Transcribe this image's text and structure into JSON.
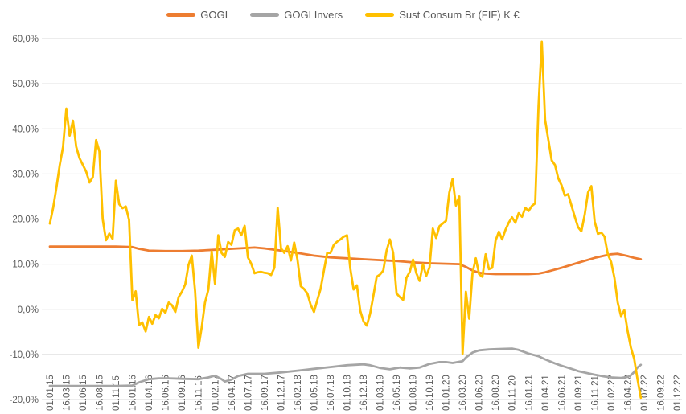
{
  "colors": {
    "background": "#FFFFFF",
    "gridline": "#D9D9D9",
    "axis_text": "#595959",
    "gogi": "#ED7D31",
    "gogi_invers": "#A5A5A5",
    "sust_consum": "#FFC000"
  },
  "chart_data": {
    "type": "line",
    "title": "",
    "legend_position": "top",
    "grid": "horizontal",
    "x_axis": {
      "tick_labels": [
        "01.01.15",
        "16.03.15",
        "01.06.15",
        "16.08.15",
        "01.11.15",
        "16.01.16",
        "01.04.16",
        "16.06.16",
        "01.09.16",
        "16.11.16",
        "01.02.17",
        "16.04.17",
        "01.07.17",
        "16.09.17",
        "01.12.17",
        "16.02.18",
        "01.05.18",
        "16.07.18",
        "01.10.18",
        "16.12.18",
        "01.03.19",
        "16.05.19",
        "01.08.19",
        "16.10.19",
        "01.01.20",
        "16.03.20",
        "01.06.20",
        "16.08.20",
        "01.11.20",
        "16.01.21",
        "01.04.21",
        "16.06.21",
        "01.09.21",
        "16.11.21",
        "01.02.22",
        "16.04.22",
        "01.07.22",
        "16.09.22",
        "01.12.22"
      ],
      "points_per_tick": 5,
      "total_points": 190,
      "note": "semi-monthly data points; data series end near 01.07.22"
    },
    "y_axis": {
      "min": -20,
      "max": 60,
      "step": 10,
      "tick_labels": [
        "60,0%",
        "50,0%",
        "40,0%",
        "30,0%",
        "20,0%",
        "10,0%",
        "0,0%",
        "-10,0%",
        "-20,0%"
      ],
      "unit": "percent"
    },
    "series": [
      {
        "name": "GOGI",
        "color": "#ED7D31",
        "points": [
          [
            0,
            13.9
          ],
          [
            5,
            13.9
          ],
          [
            10,
            13.9
          ],
          [
            15,
            13.9
          ],
          [
            20,
            13.9
          ],
          [
            25,
            13.8
          ],
          [
            27,
            13.4
          ],
          [
            30,
            13.0
          ],
          [
            35,
            12.9
          ],
          [
            40,
            12.9
          ],
          [
            45,
            13.0
          ],
          [
            50,
            13.2
          ],
          [
            55,
            13.4
          ],
          [
            60,
            13.6
          ],
          [
            62,
            13.7
          ],
          [
            65,
            13.5
          ],
          [
            70,
            13.0
          ],
          [
            75,
            12.5
          ],
          [
            80,
            11.9
          ],
          [
            85,
            11.5
          ],
          [
            90,
            11.3
          ],
          [
            95,
            11.1
          ],
          [
            100,
            10.9
          ],
          [
            105,
            10.7
          ],
          [
            110,
            10.4
          ],
          [
            115,
            10.2
          ],
          [
            120,
            10.1
          ],
          [
            124,
            10.0
          ],
          [
            126,
            9.4
          ],
          [
            128,
            8.6
          ],
          [
            130,
            8.1
          ],
          [
            132,
            7.9
          ],
          [
            135,
            7.8
          ],
          [
            140,
            7.8
          ],
          [
            145,
            7.8
          ],
          [
            148,
            7.9
          ],
          [
            150,
            8.2
          ],
          [
            155,
            9.2
          ],
          [
            160,
            10.3
          ],
          [
            165,
            11.4
          ],
          [
            168,
            11.9
          ],
          [
            170,
            12.2
          ],
          [
            172,
            12.3
          ],
          [
            175,
            11.8
          ],
          [
            177,
            11.4
          ],
          [
            179,
            11.1
          ]
        ]
      },
      {
        "name": "GOGI Invers",
        "color": "#A5A5A5",
        "points": [
          [
            0,
            -17
          ],
          [
            5,
            -17
          ],
          [
            10,
            -17
          ],
          [
            15,
            -17
          ],
          [
            20,
            -17
          ],
          [
            25,
            -16.9
          ],
          [
            27,
            -16.2
          ],
          [
            30,
            -15.5
          ],
          [
            33,
            -15.3
          ],
          [
            36,
            -15.3
          ],
          [
            40,
            -15.4
          ],
          [
            45,
            -15.5
          ],
          [
            48,
            -15.1
          ],
          [
            50,
            -14.7
          ],
          [
            52,
            -15.5
          ],
          [
            53,
            -16
          ],
          [
            55,
            -15.6
          ],
          [
            57,
            -14.8
          ],
          [
            60,
            -14.3
          ],
          [
            65,
            -14.3
          ],
          [
            70,
            -14
          ],
          [
            75,
            -13.6
          ],
          [
            80,
            -13.2
          ],
          [
            85,
            -12.8
          ],
          [
            90,
            -12.4
          ],
          [
            95,
            -12.2
          ],
          [
            97,
            -12.4
          ],
          [
            100,
            -13
          ],
          [
            103,
            -13.3
          ],
          [
            106,
            -12.9
          ],
          [
            109,
            -13.1
          ],
          [
            112,
            -12.9
          ],
          [
            115,
            -12.1
          ],
          [
            118,
            -11.7
          ],
          [
            120,
            -11.7
          ],
          [
            122,
            -11.9
          ],
          [
            125,
            -11.5
          ],
          [
            126,
            -10.7
          ],
          [
            128,
            -9.6
          ],
          [
            130,
            -9.1
          ],
          [
            133,
            -8.9
          ],
          [
            136,
            -8.8
          ],
          [
            140,
            -8.7
          ],
          [
            142,
            -9
          ],
          [
            145,
            -9.8
          ],
          [
            148,
            -10.4
          ],
          [
            150,
            -11.1
          ],
          [
            153,
            -12
          ],
          [
            155,
            -12.5
          ],
          [
            158,
            -13.2
          ],
          [
            160,
            -13.7
          ],
          [
            163,
            -14.2
          ],
          [
            165,
            -14.5
          ],
          [
            168,
            -14.9
          ],
          [
            170,
            -15.1
          ],
          [
            173,
            -15.2
          ],
          [
            175,
            -15
          ],
          [
            176,
            -14.6
          ],
          [
            177,
            -13.9
          ],
          [
            178,
            -12.9
          ],
          [
            179,
            -12.3
          ]
        ]
      },
      {
        "name": "Sust Consum Br (FIF) K €",
        "color": "#FFC000",
        "start_index": 0,
        "values": [
          19,
          22.5,
          27,
          32,
          36,
          44.5,
          38.5,
          41.8,
          36,
          33.5,
          32,
          30.5,
          28.1,
          29.3,
          37.5,
          35,
          20,
          15.3,
          16.8,
          15.6,
          28.5,
          23.3,
          22.4,
          22.8,
          19.8,
          2,
          4,
          -3.5,
          -2.9,
          -4.9,
          -1.7,
          -3.2,
          -1.3,
          -2,
          0.1,
          -0.8,
          1.5,
          0.9,
          -0.6,
          2.7,
          3.9,
          5.5,
          9.8,
          11.9,
          4,
          -8.5,
          -4,
          1.5,
          4.4,
          12.8,
          5.7,
          16.4,
          12.5,
          11.6,
          14.9,
          14.3,
          17.5,
          17.9,
          16.4,
          18.5,
          11.5,
          10.1,
          8,
          8.2,
          8.3,
          8.1,
          8,
          7.6,
          9.2,
          22.5,
          13.5,
          12.5,
          14,
          10.8,
          14.8,
          11,
          5.1,
          4.5,
          3.5,
          1,
          -0.6,
          2,
          4.5,
          8.5,
          12.5,
          12.5,
          14.3,
          15,
          15.5,
          16.1,
          16.4,
          9,
          4.4,
          5.3,
          -0.3,
          -2.7,
          -3.6,
          -1,
          3,
          7.2,
          7.7,
          8.6,
          13,
          15.5,
          12.5,
          3.5,
          2.7,
          2.1,
          7,
          8.3,
          11,
          8,
          6.3,
          10,
          7.4,
          9.3,
          17.9,
          15.8,
          18.4,
          19,
          19.6,
          25.9,
          28.9,
          23,
          25,
          -9.8,
          3.9,
          -2.1,
          8,
          11.3,
          7.8,
          7.2,
          12.2,
          8.9,
          9.2,
          15.2,
          17.2,
          15.5,
          17.6,
          19.2,
          20.4,
          19.2,
          21.3,
          20.5,
          22.5,
          21.8,
          22.9,
          23.5,
          45,
          59.3,
          42,
          37.5,
          33,
          32,
          29,
          27.5,
          25.2,
          25.5,
          23,
          20.5,
          18.2,
          17.3,
          21,
          25.9,
          27.3,
          19.5,
          16.7,
          17,
          16.1,
          12.2,
          10.5,
          7,
          1.5,
          -1.5,
          -0.2,
          -4.8,
          -8.5,
          -11,
          -15.5,
          -19.6
        ]
      }
    ]
  }
}
